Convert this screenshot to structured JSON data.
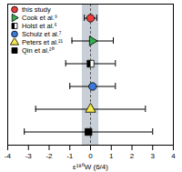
{
  "chart_data": {
    "type": "scatter",
    "x_label": "ε¹⁸⁰W (6/4)",
    "xlim": [
      -4,
      4
    ],
    "xticks": [
      -4,
      -3,
      -2,
      -1,
      0,
      1,
      2,
      3,
      4
    ],
    "tick_labels": "x",
    "legend": "upper left",
    "shaded_range": [
      -0.4,
      0.4
    ],
    "reference_line": 0,
    "series": [
      {
        "name": "this study",
        "color": "#ee3b3b",
        "marker": "circle",
        "values": [
          0
        ],
        "errors": [
          0.3
        ]
      },
      {
        "name": "Cook et al.⁹",
        "color": "#33b14a",
        "marker": "triangle-right",
        "values": [
          0.1
        ],
        "errors": [
          1.0
        ]
      },
      {
        "name": "Holst et al.⁶",
        "color": "#000000",
        "marker": "half-square",
        "values": [
          0
        ],
        "errors": [
          1.2
        ]
      },
      {
        "name": "Schulz et al.⁷",
        "color": "#3c78d8",
        "marker": "circle",
        "values": [
          0.1
        ],
        "errors": [
          1.1
        ]
      },
      {
        "name": "Peters et al.²¹",
        "color": "#f5e94a",
        "marker": "triangle",
        "values": [
          0
        ],
        "errors": [
          2.65
        ]
      },
      {
        "name": "Qin et al.²⁰",
        "color": "#000000",
        "marker": "square",
        "values": [
          -0.1
        ],
        "errors": [
          3.1
        ]
      }
    ]
  }
}
